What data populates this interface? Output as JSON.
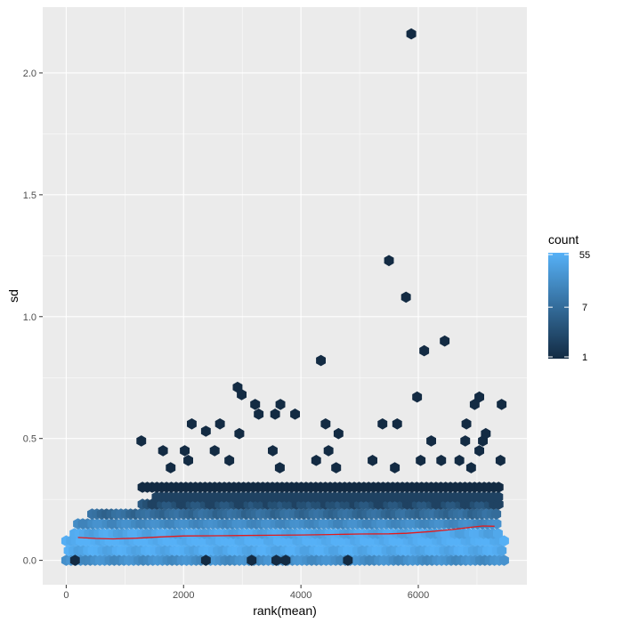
{
  "chart_data": {
    "type": "hexbin",
    "title": "",
    "xlabel": "rank(mean)",
    "ylabel": "sd",
    "xlim": [
      -400,
      7850
    ],
    "ylim": [
      -0.1,
      2.27
    ],
    "x_ticks": [
      0,
      2000,
      4000,
      6000
    ],
    "x_tick_labels": [
      "0",
      "2000",
      "4000",
      "6000"
    ],
    "y_ticks": [
      0.0,
      0.5,
      1.0,
      1.5,
      2.0
    ],
    "y_tick_labels": [
      "0.0",
      "0.5",
      "1.0",
      "1.5",
      "2.0"
    ],
    "grid": true,
    "panel_background": "#ebebeb",
    "legend": {
      "title": "count",
      "position": "right",
      "scale": "log",
      "breaks": [
        1,
        7,
        55
      ],
      "break_labels": [
        "1",
        "7",
        "55"
      ],
      "low_color": "#132b43",
      "high_color": "#56b1f7"
    },
    "dense_band": {
      "x_range": [
        0,
        7500
      ],
      "rows": [
        {
          "sd": 0.0,
          "x_from": 0,
          "x_to": 7500,
          "count": 20
        },
        {
          "sd": 0.04,
          "x_from": 0,
          "x_to": 7500,
          "count": 45
        },
        {
          "sd": 0.08,
          "x_from": 0,
          "x_to": 7500,
          "count": 55
        },
        {
          "sd": 0.11,
          "x_from": 100,
          "x_to": 7400,
          "count": 40
        },
        {
          "sd": 0.15,
          "x_from": 200,
          "x_to": 7400,
          "count": 18
        },
        {
          "sd": 0.19,
          "x_from": 400,
          "x_to": 7400,
          "count": 7
        },
        {
          "sd": 0.23,
          "x_from": 1300,
          "x_to": 7400,
          "count": 3
        },
        {
          "sd": 0.26,
          "x_from": 1500,
          "x_to": 7400,
          "count": 2
        },
        {
          "sd": 0.3,
          "x_from": 1300,
          "x_to": 7400,
          "count": 1
        }
      ]
    },
    "sparse_points": [
      {
        "x": 1280,
        "y": 0.49
      },
      {
        "x": 1650,
        "y": 0.45
      },
      {
        "x": 1780,
        "y": 0.38
      },
      {
        "x": 2020,
        "y": 0.45
      },
      {
        "x": 2140,
        "y": 0.56
      },
      {
        "x": 2080,
        "y": 0.41
      },
      {
        "x": 2380,
        "y": 0.53
      },
      {
        "x": 2530,
        "y": 0.45
      },
      {
        "x": 2620,
        "y": 0.56
      },
      {
        "x": 2780,
        "y": 0.41
      },
      {
        "x": 2920,
        "y": 0.71
      },
      {
        "x": 2990,
        "y": 0.68
      },
      {
        "x": 2950,
        "y": 0.52
      },
      {
        "x": 3220,
        "y": 0.64
      },
      {
        "x": 3280,
        "y": 0.6
      },
      {
        "x": 3560,
        "y": 0.6
      },
      {
        "x": 3650,
        "y": 0.64
      },
      {
        "x": 3520,
        "y": 0.45
      },
      {
        "x": 3900,
        "y": 0.6
      },
      {
        "x": 3640,
        "y": 0.38
      },
      {
        "x": 4260,
        "y": 0.41
      },
      {
        "x": 4340,
        "y": 0.82
      },
      {
        "x": 4420,
        "y": 0.56
      },
      {
        "x": 4470,
        "y": 0.45
      },
      {
        "x": 4640,
        "y": 0.52
      },
      {
        "x": 4600,
        "y": 0.38
      },
      {
        "x": 5220,
        "y": 0.41
      },
      {
        "x": 5390,
        "y": 0.56
      },
      {
        "x": 5500,
        "y": 1.23
      },
      {
        "x": 5640,
        "y": 0.56
      },
      {
        "x": 5790,
        "y": 1.08
      },
      {
        "x": 5880,
        "y": 2.16
      },
      {
        "x": 5980,
        "y": 0.67
      },
      {
        "x": 6040,
        "y": 0.41
      },
      {
        "x": 6100,
        "y": 0.86
      },
      {
        "x": 6220,
        "y": 0.49
      },
      {
        "x": 6450,
        "y": 0.9
      },
      {
        "x": 6390,
        "y": 0.41
      },
      {
        "x": 6700,
        "y": 0.41
      },
      {
        "x": 6820,
        "y": 0.56
      },
      {
        "x": 6800,
        "y": 0.49
      },
      {
        "x": 6960,
        "y": 0.64
      },
      {
        "x": 7040,
        "y": 0.67
      },
      {
        "x": 7100,
        "y": 0.49
      },
      {
        "x": 7150,
        "y": 0.52
      },
      {
        "x": 7040,
        "y": 0.45
      },
      {
        "x": 7420,
        "y": 0.64
      },
      {
        "x": 7400,
        "y": 0.41
      },
      {
        "x": 5600,
        "y": 0.38
      },
      {
        "x": 6900,
        "y": 0.38
      },
      {
        "x": 2380,
        "y": 0.0
      },
      {
        "x": 3160,
        "y": 0.0
      },
      {
        "x": 3580,
        "y": 0.0
      },
      {
        "x": 3740,
        "y": 0.0
      },
      {
        "x": 4800,
        "y": 0.0
      },
      {
        "x": 150,
        "y": 0.0
      }
    ],
    "trend_line": {
      "color": "#e31a1c",
      "x": [
        200,
        500,
        800,
        1200,
        1600,
        2000,
        2500,
        3000,
        3500,
        4000,
        4500,
        5000,
        5500,
        5800,
        6200,
        6600,
        6900,
        7100,
        7300
      ],
      "y": [
        0.094,
        0.09,
        0.088,
        0.091,
        0.096,
        0.1,
        0.101,
        0.102,
        0.103,
        0.104,
        0.106,
        0.108,
        0.109,
        0.111,
        0.118,
        0.127,
        0.136,
        0.141,
        0.14
      ]
    }
  }
}
